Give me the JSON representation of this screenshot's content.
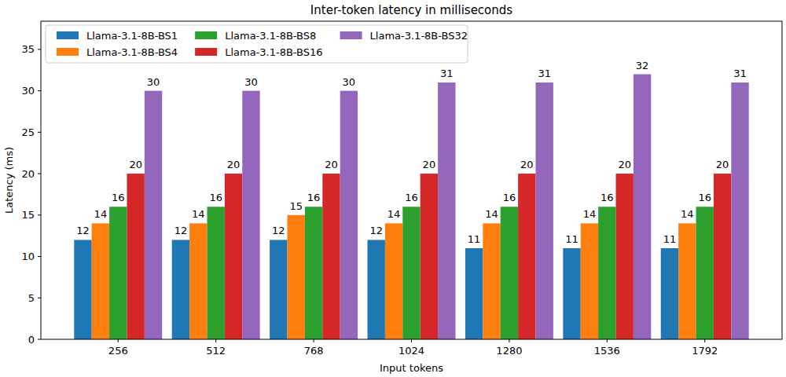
{
  "chart_data": {
    "type": "bar",
    "title": "Inter-token latency in milliseconds",
    "x_label": "Input tokens",
    "y_label": "Latency (ms)",
    "categories": [
      "256",
      "512",
      "768",
      "1024",
      "1280",
      "1536",
      "1792"
    ],
    "series": [
      {
        "name": "Llama-3.1-8B-BS1",
        "color": "#1f77b4",
        "values": [
          12,
          12,
          12,
          12,
          11,
          11,
          11
        ]
      },
      {
        "name": "Llama-3.1-8B-BS4",
        "color": "#ff7f0e",
        "values": [
          14,
          14,
          15,
          14,
          14,
          14,
          14
        ]
      },
      {
        "name": "Llama-3.1-8B-BS8",
        "color": "#2ca02c",
        "values": [
          16,
          16,
          16,
          16,
          16,
          16,
          16
        ]
      },
      {
        "name": "Llama-3.1-8B-BS16",
        "color": "#d62728",
        "values": [
          20,
          20,
          20,
          20,
          20,
          20,
          20
        ]
      },
      {
        "name": "Llama-3.1-8B-BS32",
        "color": "#9467bd",
        "values": [
          30,
          30,
          30,
          31,
          31,
          32,
          31
        ]
      }
    ],
    "ylim": [
      0,
      38.4
    ],
    "yticks": [
      0,
      5,
      10,
      15,
      20,
      25,
      30,
      35
    ],
    "grid": false,
    "legend": "upper left",
    "data_labels": true
  }
}
